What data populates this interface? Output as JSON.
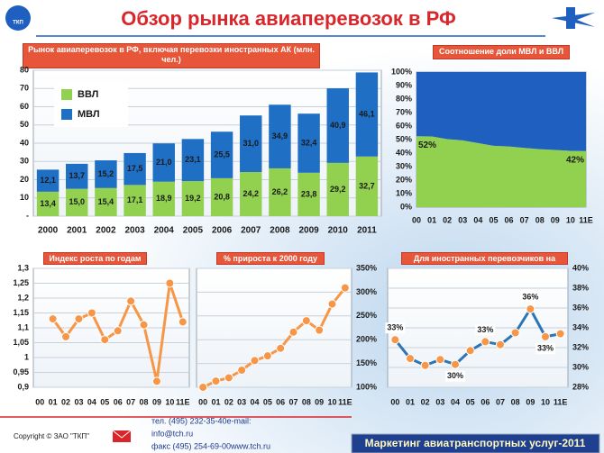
{
  "header": {
    "title": "Обзор рынка авиаперевозок в РФ",
    "logo": "ТКП"
  },
  "chart_data": [
    {
      "type": "bar",
      "stacked": true,
      "title": "Рынок авиаперевозок в РФ, включая  перевозки иностранных АК (млн. чел.)",
      "categories": [
        "2000",
        "2001",
        "2002",
        "2003",
        "2004",
        "2005",
        "2006",
        "2007",
        "2008",
        "2009",
        "2010",
        "2011"
      ],
      "series": [
        {
          "name": "ВВЛ",
          "color": "#92d050",
          "label_color": "#1a1a1a",
          "values": [
            13.4,
            15.0,
            15.4,
            17.1,
            18.9,
            19.2,
            20.8,
            24.2,
            26.2,
            23.8,
            29.2,
            32.7
          ],
          "value_labels": [
            "13,4",
            "15,0",
            "15,4",
            "17,1",
            "18,9",
            "19,2",
            "20,8",
            "24,2",
            "26,2",
            "23,8",
            "29,2",
            "32,7"
          ]
        },
        {
          "name": "МВЛ",
          "color": "#1f6fc5",
          "label_color": "#1a1a1a",
          "values": [
            12.1,
            13.7,
            15.2,
            17.5,
            21.0,
            23.1,
            25.5,
            31.0,
            34.9,
            32.4,
            40.9,
            46.1
          ],
          "value_labels": [
            "12,1",
            "13,7",
            "15,2",
            "17,5",
            "21,0",
            "23,1",
            "25,5",
            "31,0",
            "34,9",
            "32,4",
            "40,9",
            "46,1"
          ]
        }
      ],
      "ylim": [
        0,
        80
      ],
      "yticks": [
        {
          "value": 0,
          "label": "-"
        },
        10,
        20,
        30,
        40,
        50,
        60,
        70,
        80
      ],
      "grid": true,
      "legend": "upper left"
    },
    {
      "type": "area",
      "stacked": true,
      "title": "Соотношение доли МВЛ и ВВЛ",
      "categories": [
        "00",
        "01",
        "02",
        "03",
        "04",
        "05",
        "06",
        "07",
        "08",
        "09",
        "10",
        "11E"
      ],
      "series": [
        {
          "name": "ВВЛ",
          "color": "#92d050",
          "values": [
            52.5,
            52.3,
            50.3,
            49.4,
            47.4,
            45.4,
            44.9,
            43.8,
            42.9,
            42.3,
            41.7,
            41.5
          ],
          "value_labels": [
            "52%",
            null,
            null,
            null,
            null,
            null,
            null,
            null,
            null,
            null,
            null,
            "42%"
          ]
        },
        {
          "name": "МВЛ",
          "color": "#1f5fbf",
          "values": [
            47.5,
            47.7,
            49.7,
            50.6,
            52.6,
            54.6,
            55.1,
            56.2,
            57.1,
            57.7,
            58.3,
            58.5
          ]
        }
      ],
      "ylim": [
        0,
        100
      ],
      "yticks": [
        {
          "value": 0,
          "label": "0%"
        },
        {
          "value": 10,
          "label": "10%"
        },
        {
          "value": 20,
          "label": "20%"
        },
        {
          "value": 30,
          "label": "30%"
        },
        {
          "value": 40,
          "label": "40%"
        },
        {
          "value": 50,
          "label": "50%"
        },
        {
          "value": 60,
          "label": "60%"
        },
        {
          "value": 70,
          "label": "70%"
        },
        {
          "value": 80,
          "label": "80%"
        },
        {
          "value": 90,
          "label": "90%"
        },
        {
          "value": 100,
          "label": "100%"
        }
      ],
      "y_axis": "left"
    },
    {
      "type": "line",
      "title": "Индекс роста по годам",
      "categories": [
        "00",
        "01",
        "02",
        "03",
        "04",
        "05",
        "06",
        "07",
        "08",
        "09",
        "10",
        "11E"
      ],
      "values": [
        null,
        1.13,
        1.07,
        1.13,
        1.15,
        1.06,
        1.09,
        1.19,
        1.11,
        0.92,
        1.25,
        1.12
      ],
      "color": "#f79646",
      "marker_color": "#f79646",
      "ylim": [
        0.9,
        1.3
      ],
      "yticks": [
        {
          "value": 0.9,
          "label": "0,9"
        },
        {
          "value": 0.95,
          "label": "0,95"
        },
        1,
        {
          "value": 1.05,
          "label": "1,05"
        },
        {
          "value": 1.1,
          "label": "1,1"
        },
        {
          "value": 1.15,
          "label": "1,15"
        },
        {
          "value": 1.2,
          "label": "1,2"
        },
        {
          "value": 1.25,
          "label": "1,25"
        },
        {
          "value": 1.3,
          "label": "1,3"
        }
      ],
      "grid": true,
      "y_axis": "left"
    },
    {
      "type": "line",
      "title": "% прироста к 2000 году",
      "categories": [
        "00",
        "01",
        "02",
        "03",
        "04",
        "05",
        "06",
        "07",
        "08",
        "09",
        "10",
        "11E"
      ],
      "values": [
        100,
        113,
        120,
        136,
        156,
        166,
        182,
        216,
        240,
        220,
        275,
        309
      ],
      "color": "#f79646",
      "marker_color": "#f79646",
      "ylim": [
        100,
        350
      ],
      "yticks": [
        {
          "value": 100,
          "label": "100%"
        },
        {
          "value": 150,
          "label": "150%"
        },
        {
          "value": 200,
          "label": "200%"
        },
        {
          "value": 250,
          "label": "250%"
        },
        {
          "value": 300,
          "label": "300%"
        },
        {
          "value": 350,
          "label": "350%"
        }
      ],
      "grid": true,
      "y_axis": "right"
    },
    {
      "type": "line",
      "title": "Для иностранных  перевозчиков  на МВЛ",
      "categories": [
        "00",
        "01",
        "02",
        "03",
        "04",
        "05",
        "06",
        "07",
        "08",
        "09",
        "10",
        "11E"
      ],
      "values": [
        32.8,
        30.9,
        30.2,
        30.8,
        30.3,
        31.7,
        32.6,
        32.3,
        33.5,
        35.9,
        33.1,
        33.4
      ],
      "value_labels": [
        "33%",
        null,
        null,
        null,
        "30%",
        null,
        "33%",
        null,
        null,
        "36%",
        "33%",
        null
      ],
      "color": "#2e75b6",
      "marker_color": "#f79646",
      "ylim": [
        28,
        40
      ],
      "yticks": [
        {
          "value": 28,
          "label": "28%"
        },
        {
          "value": 30,
          "label": "30%"
        },
        {
          "value": 32,
          "label": "32%"
        },
        {
          "value": 34,
          "label": "34%"
        },
        {
          "value": 36,
          "label": "36%"
        },
        {
          "value": 38,
          "label": "38%"
        },
        {
          "value": 40,
          "label": "40%"
        }
      ],
      "grid": true,
      "y_axis": "right"
    }
  ],
  "footer": {
    "copyright": "Copyright © ЗАО \"ТКП\"",
    "contacts": [
      "тел.  (495) 232-35-40e-mail:",
      "info@tch.ru",
      "факс (495) 254-69-00www.tch.ru"
    ],
    "banner": "Маркетинг авиатранспортных услуг-2011"
  }
}
